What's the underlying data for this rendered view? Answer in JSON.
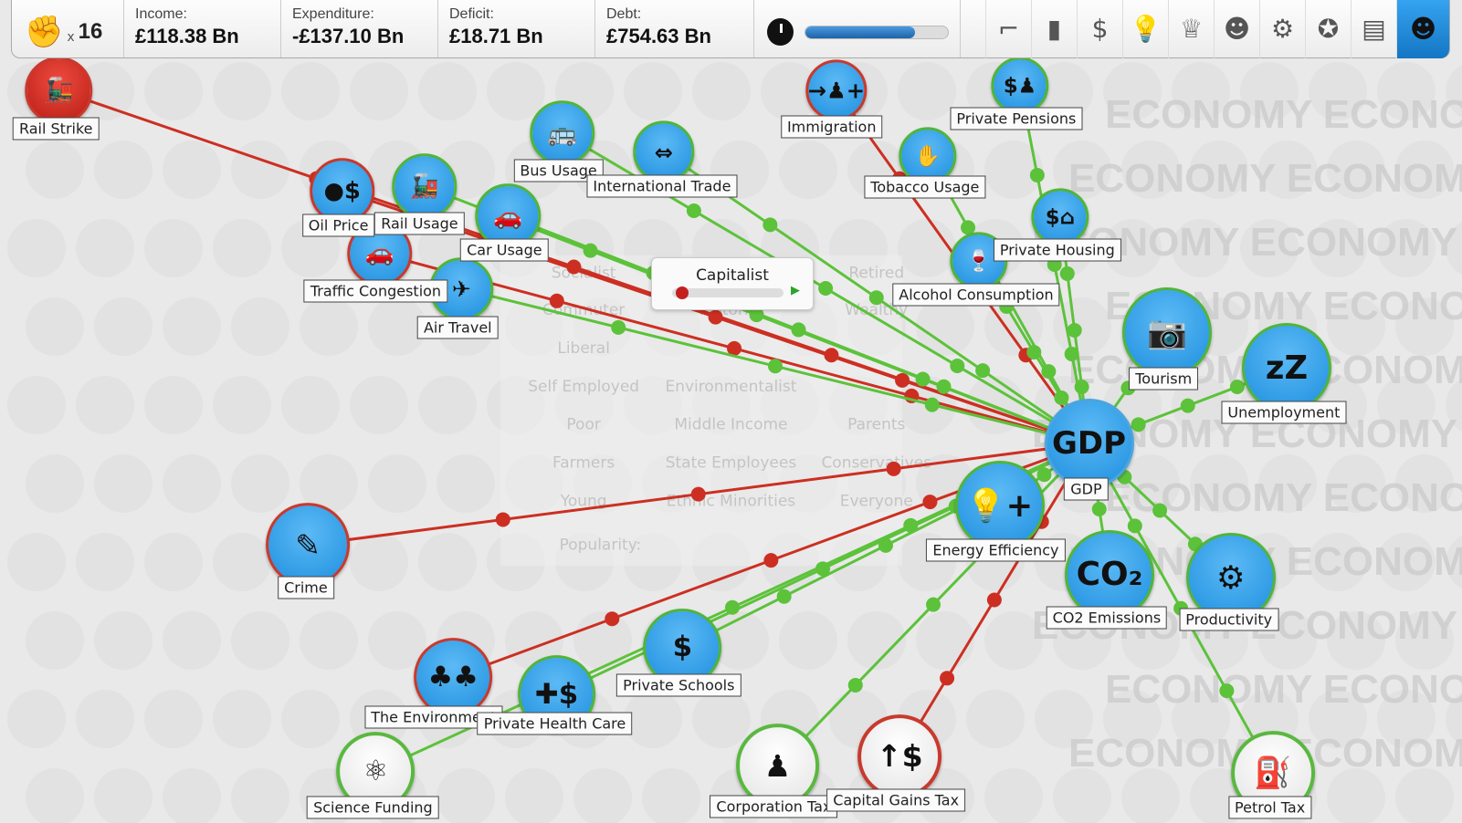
{
  "topbar": {
    "activists_icon": "raised-fist-icon",
    "activists_prefix": "x",
    "activists_count": "16",
    "income_label": "Income:",
    "income_value": "£118.38 Bn",
    "expenditure_label": "Expenditure:",
    "expenditure_value": "-£137.10 Bn",
    "deficit_label": "Deficit:",
    "deficit_value": "£18.71 Bn",
    "debt_label": "Debt:",
    "debt_value": "£754.63 Bn",
    "turn_progress_percent": 77,
    "tools": [
      "pistol-icon",
      "bar-chart-icon",
      "dollar-icon",
      "lightbulb-icon",
      "trophy-icon",
      "group-icon",
      "gears-icon",
      "rosette-icon",
      "documents-icon",
      "voters-icon"
    ],
    "active_tool": "voters-icon"
  },
  "popup": {
    "title": "Capitalist",
    "popularity_percent": 3
  },
  "watermark": "ECONOMY",
  "background_groups": [
    "Socialist",
    "Commuter",
    "Liberal",
    "Self Employed",
    "Poor",
    "Farmers",
    "Young",
    "Retired",
    "Motorist",
    "Environmentalist",
    "Middle Income",
    "State Employees",
    "Ethnic Minorities",
    "Wealthy",
    "Parents",
    "Conservatives",
    "Everyone",
    "Popularity:"
  ],
  "colors": {
    "positive": "#5cc23a",
    "negative": "#cc2f22",
    "node_blue": "#2a98e6",
    "accent": "#1a80d0"
  },
  "nodes": [
    {
      "id": "gdp",
      "label": "GDP",
      "icon": "GDP",
      "kind": "blue"
    },
    {
      "id": "rail_strike",
      "label": "Rail Strike",
      "icon": "train-strike-icon",
      "kind": "red",
      "effect": "negative"
    },
    {
      "id": "oil_price",
      "label": "Oil Price",
      "icon": "oil-drop-dollar-icon",
      "kind": "blue",
      "effect": "negative"
    },
    {
      "id": "rail_usage",
      "label": "Rail Usage",
      "icon": "train-icon",
      "kind": "blue",
      "effect": "positive"
    },
    {
      "id": "car_usage",
      "label": "Car Usage",
      "icon": "car-icon",
      "kind": "blue",
      "effect": "positive"
    },
    {
      "id": "traffic",
      "label": "Traffic Congestion",
      "icon": "traffic-icon",
      "kind": "blue",
      "effect": "negative"
    },
    {
      "id": "air_travel",
      "label": "Air Travel",
      "icon": "airplane-icon",
      "kind": "blue",
      "effect": "positive"
    },
    {
      "id": "bus_usage",
      "label": "Bus Usage",
      "icon": "bus-icon",
      "kind": "blue",
      "effect": "positive"
    },
    {
      "id": "intl_trade",
      "label": "International Trade",
      "icon": "ship-icon",
      "kind": "blue",
      "effect": "positive"
    },
    {
      "id": "immigration",
      "label": "Immigration",
      "icon": "immigrant-icon",
      "kind": "blue",
      "effect": "negative"
    },
    {
      "id": "tobacco",
      "label": "Tobacco Usage",
      "icon": "cigarette-icon",
      "kind": "blue",
      "effect": "positive"
    },
    {
      "id": "pensions",
      "label": "Private Pensions",
      "icon": "pension-icon",
      "kind": "blue",
      "effect": "positive"
    },
    {
      "id": "housing",
      "label": "Private Housing",
      "icon": "house-dollar-icon",
      "kind": "blue",
      "effect": "positive"
    },
    {
      "id": "alcohol",
      "label": "Alcohol Consumption",
      "icon": "bottle-icon",
      "kind": "blue",
      "effect": "positive"
    },
    {
      "id": "tourism",
      "label": "Tourism",
      "icon": "camera-icon",
      "kind": "blue",
      "effect": "positive"
    },
    {
      "id": "unemployment",
      "label": "Unemployment",
      "icon": "sleeping-icon",
      "kind": "blue",
      "effect": "positive"
    },
    {
      "id": "energy",
      "label": "Energy Efficiency",
      "icon": "lightbulb-plus-icon",
      "kind": "blue",
      "effect": "positive"
    },
    {
      "id": "co2",
      "label": "CO2 Emissions",
      "icon": "CO₂",
      "kind": "blue",
      "effect": "positive"
    },
    {
      "id": "productivity",
      "label": "Productivity",
      "icon": "productivity-icon",
      "kind": "blue",
      "effect": "positive"
    },
    {
      "id": "crime",
      "label": "Crime",
      "icon": "crowbar-bag-icon",
      "kind": "blue",
      "effect": "negative"
    },
    {
      "id": "environment",
      "label": "The Environment",
      "icon": "trees-icon",
      "kind": "blue",
      "effect": "negative"
    },
    {
      "id": "health",
      "label": "Private Health Care",
      "icon": "health-dollar-icon",
      "kind": "blue",
      "effect": "positive"
    },
    {
      "id": "schools",
      "label": "Private Schools",
      "icon": "school-dollar-icon",
      "kind": "blue",
      "effect": "positive"
    },
    {
      "id": "science",
      "label": "Science Funding",
      "icon": "atom-icon",
      "kind": "white",
      "effect": "positive"
    },
    {
      "id": "corp_tax",
      "label": "Corporation Tax",
      "icon": "businessman-icon",
      "kind": "white",
      "effect": "positive"
    },
    {
      "id": "cgt",
      "label": "Capital Gains Tax",
      "icon": "coins-dollar-icon",
      "kind": "white",
      "effect": "negative"
    },
    {
      "id": "petrol_tax",
      "label": "Petrol Tax",
      "icon": "fuel-pump-icon",
      "kind": "white",
      "effect": "positive"
    }
  ]
}
